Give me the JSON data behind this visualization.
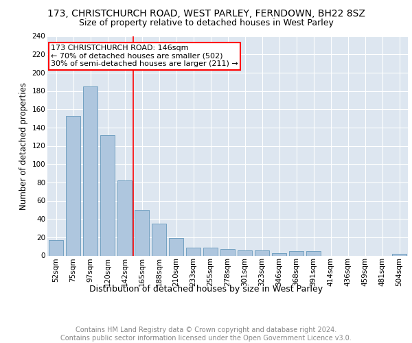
{
  "title": "173, CHRISTCHURCH ROAD, WEST PARLEY, FERNDOWN, BH22 8SZ",
  "subtitle": "Size of property relative to detached houses in West Parley",
  "xlabel": "Distribution of detached houses by size in West Parley",
  "ylabel": "Number of detached properties",
  "categories": [
    "52sqm",
    "75sqm",
    "97sqm",
    "120sqm",
    "142sqm",
    "165sqm",
    "188sqm",
    "210sqm",
    "233sqm",
    "255sqm",
    "278sqm",
    "301sqm",
    "323sqm",
    "346sqm",
    "368sqm",
    "391sqm",
    "414sqm",
    "436sqm",
    "459sqm",
    "481sqm",
    "504sqm"
  ],
  "values": [
    17,
    153,
    185,
    132,
    82,
    50,
    35,
    19,
    9,
    9,
    7,
    6,
    6,
    3,
    5,
    5,
    0,
    0,
    0,
    0,
    2
  ],
  "bar_color": "#aec6de",
  "bar_edge_color": "#6699bb",
  "vline_x_index": 4,
  "vline_color": "red",
  "annotation_text": "173 CHRISTCHURCH ROAD: 146sqm\n← 70% of detached houses are smaller (502)\n30% of semi-detached houses are larger (211) →",
  "annotation_box_color": "white",
  "annotation_box_edge_color": "red",
  "ylim": [
    0,
    240
  ],
  "yticks": [
    0,
    20,
    40,
    60,
    80,
    100,
    120,
    140,
    160,
    180,
    200,
    220,
    240
  ],
  "background_color": "#dde6f0",
  "footer": "Contains HM Land Registry data © Crown copyright and database right 2024.\nContains public sector information licensed under the Open Government Licence v3.0.",
  "title_fontsize": 10,
  "subtitle_fontsize": 9,
  "xlabel_fontsize": 9,
  "ylabel_fontsize": 8.5,
  "tick_fontsize": 7.5,
  "annotation_fontsize": 8,
  "footer_fontsize": 7
}
